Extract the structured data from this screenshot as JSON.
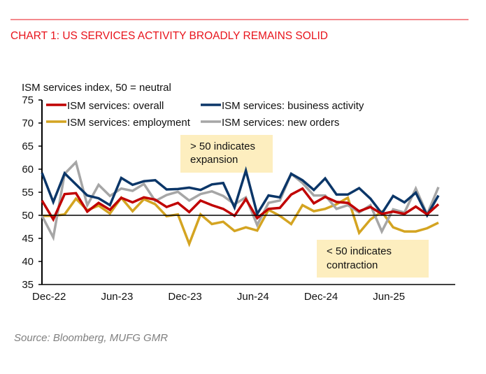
{
  "header": {
    "title": "CHART 1: US SERVICES ACTIVITY BROADLY REMAINS SOLID",
    "accent_color": "#e8141c"
  },
  "footer": {
    "source": "Source: Bloomberg, MUFG GMR"
  },
  "chart_data": {
    "type": "line",
    "ylabel": "ISM services index, 50 = neutral",
    "ylim": [
      35,
      75
    ],
    "yticks": [
      35,
      40,
      45,
      50,
      55,
      60,
      65,
      70,
      75
    ],
    "reference_line": 50,
    "grid": false,
    "legend_placement": "top",
    "x": [
      "Nov-22",
      "Dec-22",
      "Jan-23",
      "Feb-23",
      "Mar-23",
      "Apr-23",
      "May-23",
      "Jun-23",
      "Jul-23",
      "Aug-23",
      "Sep-23",
      "Oct-23",
      "Nov-23",
      "Dec-23",
      "Jan-24",
      "Feb-24",
      "Mar-24",
      "Apr-24",
      "May-24",
      "Jun-24",
      "Jul-24",
      "Aug-24",
      "Sep-24",
      "Oct-24",
      "Nov-24",
      "Dec-24",
      "Jan-25",
      "Feb-25",
      "Mar-25",
      "Apr-25",
      "May-25",
      "Jun-25",
      "Jul-25",
      "Aug-25",
      "Sep-25",
      "Oct-25"
    ],
    "xtick_labels": [
      "Dec-22",
      "Jun-23",
      "Dec-23",
      "Jun-24",
      "Dec-24",
      "Jun-25"
    ],
    "series": [
      {
        "name": "ISM services: overall",
        "color": "#c00000",
        "values": [
          53.2,
          49.1,
          54.6,
          54.8,
          50.8,
          52.7,
          51.2,
          53.8,
          52.8,
          53.9,
          53.4,
          51.8,
          52.7,
          50.7,
          53.2,
          52.2,
          51.4,
          49.9,
          53.5,
          49.4,
          51.4,
          51.6,
          54.5,
          55.8,
          52.6,
          54.0,
          52.9,
          52.7,
          50.9,
          51.8,
          50.3,
          50.8,
          50.3,
          51.9,
          50.2,
          52.4
        ]
      },
      {
        "name": "ISM services: business activity",
        "color": "#0b3668",
        "values": [
          59.2,
          52.9,
          59.1,
          56.7,
          54.3,
          53.7,
          52.2,
          58.1,
          56.6,
          57.4,
          57.6,
          55.6,
          55.7,
          56.0,
          55.5,
          56.7,
          57.0,
          51.7,
          59.7,
          50.3,
          54.3,
          53.9,
          59.0,
          57.6,
          55.5,
          58.0,
          54.5,
          54.5,
          55.9,
          53.6,
          50.4,
          54.2,
          52.8,
          54.9,
          50.0,
          54.3
        ]
      },
      {
        "name": "ISM services: employment",
        "color": "#d4a421",
        "values": [
          49.9,
          49.9,
          50.2,
          53.6,
          51.1,
          52.1,
          50.4,
          53.8,
          50.9,
          53.5,
          52.4,
          49.8,
          50.2,
          43.8,
          50.2,
          48.1,
          48.6,
          46.6,
          47.4,
          46.7,
          51.2,
          49.9,
          48.1,
          52.2,
          50.9,
          51.4,
          52.4,
          53.8,
          46.2,
          49.1,
          50.8,
          47.4,
          46.5,
          46.5,
          47.2,
          48.4
        ]
      },
      {
        "name": "ISM services: new orders",
        "color": "#a6a6a6",
        "values": [
          49.9,
          45.2,
          59.0,
          61.5,
          52.2,
          56.6,
          54.2,
          55.8,
          55.3,
          56.8,
          53.1,
          54.4,
          55.1,
          53.2,
          54.6,
          55.2,
          54.2,
          52.4,
          53.9,
          47.9,
          52.7,
          53.2,
          59.0,
          57.0,
          54.3,
          54.3,
          51.4,
          52.2,
          50.6,
          52.2,
          46.5,
          51.3,
          50.6,
          55.8,
          50.2,
          56.1
        ]
      }
    ],
    "annotations": [
      {
        "line1": "> 50 indicates",
        "line2": "expansion"
      },
      {
        "line1": "< 50 indicates",
        "line2": "contraction"
      }
    ],
    "annotation_fill": "#fdeebf"
  }
}
